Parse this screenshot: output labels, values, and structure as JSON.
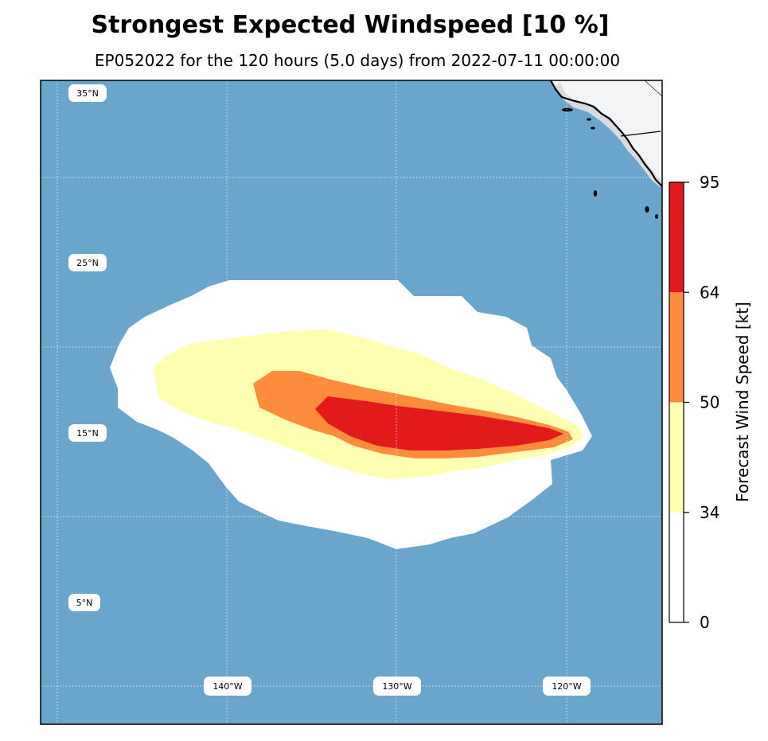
{
  "title": "Strongest Expected Windspeed [10 %]",
  "subtitle": "EP052022 for the 120 hours (5.0 days) from 2022-07-11 00:00:00",
  "map": {
    "ocean_color": "#6aa6cb",
    "land_color": "#f3f4f6",
    "lat_labels": [
      "35°N",
      "25°N",
      "15°N",
      "5°N"
    ],
    "lon_labels": [
      "140°W",
      "130°W",
      "120°W"
    ]
  },
  "colorbar": {
    "label": "Forecast Wind Speed [kt]",
    "ticks": [
      "0",
      "34",
      "50",
      "64",
      "95"
    ],
    "bins": [
      {
        "from": 0,
        "to": 34,
        "color": "#ffffff"
      },
      {
        "from": 34,
        "to": 50,
        "color": "#ffffb2"
      },
      {
        "from": 50,
        "to": 64,
        "color": "#fd8d3c"
      },
      {
        "from": 64,
        "to": 95,
        "color": "#e31a1c"
      }
    ]
  }
}
